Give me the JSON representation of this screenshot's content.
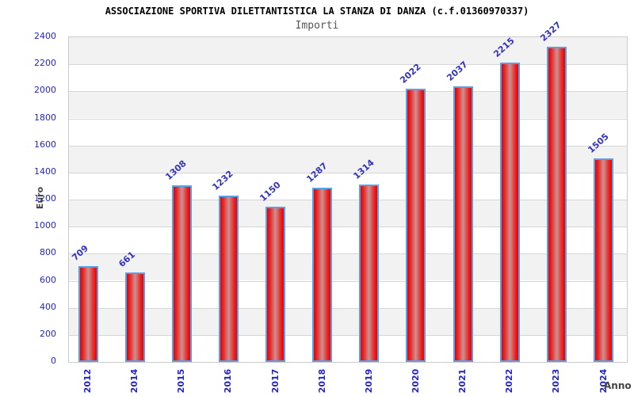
{
  "header": {
    "title": "ASSOCIAZIONE SPORTIVA DILETTANTISTICA LA STANZA DI DANZA (c.f.01360970337)",
    "subtitle": "Importi"
  },
  "chart_data": {
    "type": "bar",
    "title": "Importi",
    "categories": [
      "2012",
      "2014",
      "2015",
      "2016",
      "2017",
      "2018",
      "2019",
      "2020",
      "2021",
      "2022",
      "2023",
      "2024"
    ],
    "values": [
      709,
      661,
      1308,
      1232,
      1150,
      1287,
      1314,
      2022,
      2037,
      2215,
      2327,
      1505
    ],
    "xlabel": "Anno",
    "ylabel": "Euro",
    "ylim": [
      0,
      2400
    ],
    "ytick_step": 200,
    "grid": true,
    "legend": false,
    "band_pattern": "alternating gray/white horizontal bands, gray at top",
    "colors": {
      "bar_edge_red": "#de0404",
      "bar_center": "#cd9191",
      "bar_border_blue": "#58a0e8",
      "tick_label_blue": "#2424cc",
      "value_label_blue": "#3333bb",
      "band_gray": "#f2f2f2",
      "band_white": "#ffffff",
      "grid_line": "#d6d6d6",
      "plot_border": "#cccccc",
      "title_color": "#000000",
      "subtitle_color": "#555555",
      "axis_title_color": "#444444"
    }
  }
}
